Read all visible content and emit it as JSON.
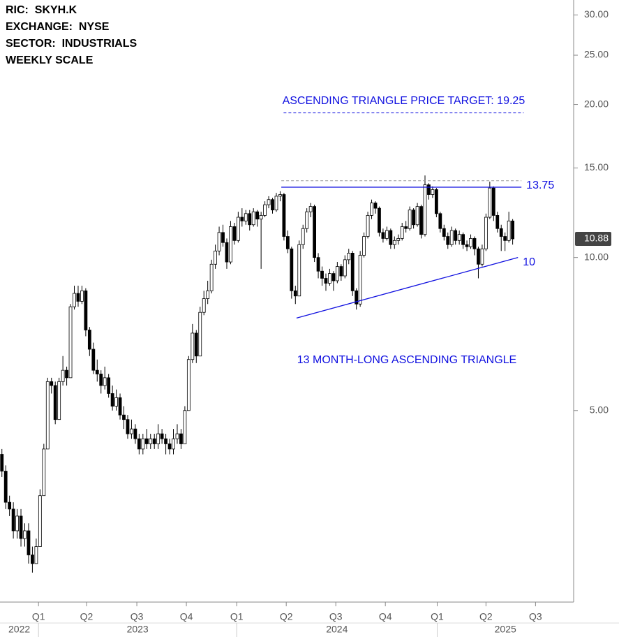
{
  "header": [
    "RIC:  SKYH.K",
    "EXCHANGE:  NYSE",
    "SECTOR:  INDUSTRIALS",
    "WEEKLY SCALE"
  ],
  "chart_data": {
    "type": "candlestick",
    "log_scale": true,
    "grid": false,
    "up_color": "#ffffff",
    "down_color": "#000000",
    "ylim": [
      2.1,
      32.1
    ],
    "yticks": [
      {
        "value": 5,
        "label": "5.00"
      },
      {
        "value": 10,
        "label": "10.00"
      },
      {
        "value": 15,
        "label": "15.00"
      },
      {
        "value": 20,
        "label": "20.00"
      },
      {
        "value": 25,
        "label": "25.00"
      },
      {
        "value": 30,
        "label": "30.00"
      }
    ],
    "xlim": [
      -0.5,
      150
    ],
    "xticks": [
      {
        "value": 9.6,
        "label": "Q1"
      },
      {
        "value": 22.2,
        "label": "Q2"
      },
      {
        "value": 35.4,
        "label": "Q3"
      },
      {
        "value": 48.4,
        "label": "Q4"
      },
      {
        "value": 61.6,
        "label": "Q1"
      },
      {
        "value": 74.6,
        "label": "Q2"
      },
      {
        "value": 87.6,
        "label": "Q3"
      },
      {
        "value": 100.6,
        "label": "Q4"
      },
      {
        "value": 114.2,
        "label": "Q1"
      },
      {
        "value": 127,
        "label": "Q2"
      },
      {
        "value": 140,
        "label": "Q3"
      }
    ],
    "years": [
      {
        "label": "2022",
        "from": -0.5,
        "to": 9.6
      },
      {
        "label": "2023",
        "from": 9.6,
        "to": 61.6
      },
      {
        "label": "2024",
        "from": 61.6,
        "to": 114.2
      },
      {
        "label": "2025",
        "from": 114.2,
        "to": 150
      }
    ],
    "open": [
      4.1,
      3.8,
      3.3,
      3.2,
      2.9,
      3.1,
      2.8,
      2.9,
      2.6,
      2.5,
      2.7,
      3.4,
      4.2,
      5.7,
      5.6,
      4.8,
      5.7,
      6.0,
      5.8,
      8.0,
      8.5,
      8.2,
      8.6,
      7.2,
      6.6,
      6.0,
      5.9,
      5.6,
      5.8,
      5.4,
      5.1,
      5.3,
      4.9,
      4.8,
      4.5,
      4.6,
      4.4,
      4.2,
      4.4,
      4.3,
      4.4,
      4.3,
      4.5,
      4.4,
      4.3,
      4.2,
      4.4,
      4.5,
      4.3,
      5.0,
      6.3,
      7.1,
      6.4,
      7.8,
      8.3,
      8.6,
      9.7,
      10.3,
      11.2,
      10.7,
      9.8,
      11.5,
      10.8,
      12.0,
      11.8,
      12.2,
      11.6,
      12.3,
      11.9,
      12.1,
      12.7,
      13.0,
      12.4,
      13.2,
      13.3,
      11.0,
      10.4,
      8.6,
      8.4,
      10.6,
      11.4,
      12.3,
      12.6,
      10.0,
      9.4,
      9.1,
      8.9,
      9.3,
      9.0,
      9.6,
      9.2,
      9.9,
      10.2,
      8.6,
      8.1,
      10.1,
      11.0,
      12.1,
      12.8,
      12.5,
      11.2,
      10.9,
      11.3,
      10.6,
      10.8,
      10.9,
      11.5,
      11.4,
      12.4,
      11.6,
      12.6,
      11.1,
      13.9,
      13.3,
      13.6,
      12.2,
      11.4,
      11.0,
      10.6,
      11.3,
      10.8,
      11.1,
      10.6,
      10.5,
      10.9,
      10.4,
      9.7,
      10.4,
      12.0,
      13.7,
      12.1,
      11.4,
      11.0,
      10.8,
      11.8
    ],
    "high": [
      4.2,
      3.9,
      3.4,
      3.3,
      3.2,
      3.2,
      3.0,
      3.0,
      2.7,
      2.8,
      3.5,
      4.3,
      5.8,
      5.8,
      5.7,
      5.8,
      6.4,
      6.1,
      8.1,
      8.8,
      8.8,
      8.8,
      8.7,
      7.3,
      6.8,
      6.3,
      6.0,
      6.1,
      5.9,
      5.6,
      5.5,
      5.4,
      5.1,
      4.9,
      4.8,
      4.7,
      4.5,
      4.5,
      4.6,
      4.5,
      4.5,
      4.7,
      4.6,
      4.5,
      4.4,
      4.6,
      4.7,
      4.6,
      5.1,
      6.4,
      7.4,
      7.2,
      8.0,
      8.6,
      9.0,
      9.9,
      10.6,
      11.5,
      11.6,
      10.9,
      11.8,
      11.7,
      12.3,
      12.5,
      12.4,
      12.4,
      12.5,
      12.4,
      12.3,
      12.9,
      13.2,
      13.1,
      13.4,
      13.5,
      13.4,
      11.3,
      10.5,
      8.8,
      10.8,
      11.6,
      12.5,
      12.8,
      12.7,
      10.2,
      9.6,
      9.3,
      9.5,
      9.4,
      9.8,
      9.7,
      10.1,
      10.4,
      10.3,
      8.7,
      10.3,
      11.2,
      12.3,
      13.0,
      12.9,
      12.6,
      11.4,
      11.5,
      11.4,
      11.0,
      11.1,
      11.7,
      11.8,
      12.6,
      12.5,
      12.8,
      12.7,
      14.5,
      14.0,
      13.8,
      13.7,
      12.3,
      11.6,
      11.2,
      11.5,
      11.4,
      11.3,
      11.2,
      10.8,
      11.1,
      11.0,
      10.5,
      10.6,
      12.2,
      14.1,
      13.8,
      12.3,
      11.6,
      11.2,
      12.3,
      11.9
    ],
    "low": [
      3.7,
      3.2,
      3.1,
      2.8,
      2.8,
      2.7,
      2.7,
      2.5,
      2.4,
      2.5,
      2.7,
      3.4,
      4.2,
      5.4,
      4.7,
      4.8,
      5.6,
      5.6,
      5.8,
      7.9,
      8.0,
      8.1,
      7.0,
      6.4,
      5.9,
      5.7,
      5.4,
      5.5,
      5.3,
      5.0,
      5.0,
      4.8,
      4.6,
      4.4,
      4.4,
      4.3,
      4.1,
      4.1,
      4.2,
      4.2,
      4.2,
      4.2,
      4.3,
      4.1,
      4.1,
      4.1,
      4.3,
      4.2,
      4.3,
      5.0,
      6.2,
      6.2,
      6.4,
      7.7,
      8.1,
      8.5,
      9.5,
      10.1,
      10.5,
      9.5,
      9.7,
      10.6,
      10.7,
      11.5,
      11.6,
      11.3,
      11.5,
      11.5,
      9.5,
      12.0,
      12.5,
      12.2,
      12.3,
      12.9,
      10.8,
      10.2,
      8.3,
      8.1,
      8.4,
      10.4,
      11.2,
      12.0,
      9.8,
      9.1,
      8.8,
      8.6,
      8.8,
      8.6,
      8.9,
      9.0,
      9.1,
      9.7,
      8.4,
      7.9,
      8.0,
      10.0,
      10.9,
      11.9,
      12.2,
      11.0,
      10.7,
      10.8,
      10.4,
      10.4,
      10.6,
      10.8,
      11.2,
      11.3,
      11.4,
      11.5,
      10.9,
      11.0,
      13.0,
      13.1,
      12.0,
      11.2,
      10.8,
      10.4,
      10.5,
      10.6,
      10.6,
      10.4,
      10.3,
      10.4,
      10.1,
      9.1,
      9.6,
      10.3,
      11.9,
      11.8,
      11.2,
      10.3,
      10.3,
      10.7,
      10.6
    ],
    "close": [
      3.8,
      3.3,
      3.2,
      2.9,
      3.1,
      2.8,
      2.9,
      2.6,
      2.5,
      2.7,
      3.4,
      4.2,
      5.7,
      5.6,
      4.8,
      5.7,
      6.0,
      5.8,
      8.0,
      8.5,
      8.2,
      8.6,
      7.2,
      6.6,
      6.0,
      5.9,
      5.6,
      5.8,
      5.4,
      5.1,
      5.3,
      4.9,
      4.8,
      4.5,
      4.6,
      4.4,
      4.2,
      4.4,
      4.3,
      4.4,
      4.3,
      4.5,
      4.4,
      4.3,
      4.2,
      4.4,
      4.5,
      4.3,
      5.0,
      6.3,
      7.1,
      6.4,
      7.8,
      8.3,
      8.6,
      9.7,
      10.3,
      11.2,
      10.7,
      9.8,
      11.5,
      10.8,
      12.0,
      11.8,
      12.2,
      11.6,
      12.3,
      11.9,
      12.1,
      12.7,
      13.0,
      12.4,
      13.2,
      13.3,
      11.0,
      10.4,
      8.6,
      8.4,
      10.6,
      11.4,
      12.3,
      12.6,
      10.0,
      9.4,
      9.1,
      8.9,
      9.3,
      9.0,
      9.6,
      9.2,
      9.9,
      10.2,
      8.6,
      8.1,
      10.1,
      11.0,
      12.1,
      12.8,
      12.5,
      11.2,
      10.9,
      11.3,
      10.6,
      10.8,
      10.9,
      11.5,
      11.4,
      12.4,
      11.6,
      12.6,
      11.1,
      13.9,
      13.3,
      13.6,
      12.2,
      11.4,
      11.0,
      10.6,
      11.3,
      10.8,
      11.1,
      10.6,
      10.5,
      10.9,
      10.4,
      9.7,
      10.4,
      12.0,
      13.7,
      12.1,
      11.4,
      11.0,
      10.8,
      11.8,
      10.88
    ],
    "resistance": {
      "value": 13.75,
      "from": 73.3,
      "to": 136.3,
      "color": "#1010e0"
    },
    "resistance_top": {
      "value": 14.16,
      "from": 73.3,
      "to": 136.3,
      "color": "#999999"
    },
    "support": {
      "from": [
        77.3,
        7.6
      ],
      "to": [
        135.4,
        10
      ],
      "color": "#1010e0"
    },
    "target": {
      "text": "ASCENDING TRIANGLE PRICE TARGET: 19.25",
      "value": 19.25,
      "from": 73.9,
      "to": 136.9,
      "color": "#1010e0"
    },
    "pattern_label": "13 MONTH-LONG ASCENDING TRIANGLE"
  }
}
